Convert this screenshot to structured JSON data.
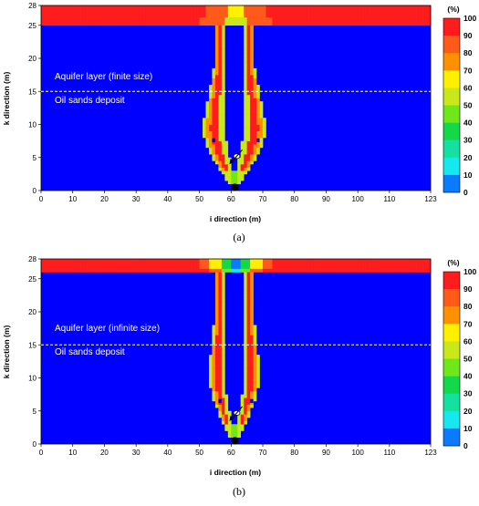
{
  "colors": {
    "background_field": "#0000ff",
    "colorbar": [
      "#0000ff",
      "#0a7aff",
      "#16e8f0",
      "#14e0a0",
      "#13d84a",
      "#6ee81a",
      "#c8e81a",
      "#fff000",
      "#ff9000",
      "#ff5a1a",
      "#ff1c1c"
    ]
  },
  "colorbar": {
    "unit": "(%)",
    "ticks": [
      "100",
      "90",
      "80",
      "70",
      "60",
      "50",
      "40",
      "30",
      "20",
      "10",
      "0"
    ]
  },
  "chart_data": [
    {
      "type": "heatmap",
      "caption": "(a)",
      "xlabel": "i direction (m)",
      "ylabel": "k direction (m)",
      "xlim": [
        0,
        123
      ],
      "ylim": [
        0,
        28
      ],
      "xticks": [
        "0",
        "10",
        "20",
        "30",
        "40",
        "50",
        "60",
        "70",
        "80",
        "90",
        "100",
        "110",
        "123"
      ],
      "yticks": [
        "0",
        "5",
        "10",
        "15",
        "20",
        "25",
        "28"
      ],
      "annotations": {
        "upper": "Aquifer layer (finite size)",
        "lower": "Oil sands deposit"
      },
      "interface_k": 15,
      "well_i": 61,
      "plume_max_halfwidth_m": 10,
      "plume_max_halfwidth_k": 9.5
    },
    {
      "type": "heatmap",
      "caption": "(b)",
      "xlabel": "i direction (m)",
      "ylabel": "k direction (m)",
      "xlim": [
        0,
        123
      ],
      "ylim": [
        0,
        28
      ],
      "xticks": [
        "0",
        "10",
        "20",
        "30",
        "40",
        "50",
        "60",
        "70",
        "80",
        "90",
        "100",
        "110",
        "123"
      ],
      "yticks": [
        "0",
        "5",
        "10",
        "15",
        "20",
        "25",
        "28"
      ],
      "annotations": {
        "upper": "Aquifer layer (infinite size)",
        "lower": "Oil sands deposit"
      },
      "interface_k": 15,
      "well_i": 61,
      "plume_max_halfwidth_m": 8,
      "plume_max_halfwidth_k": 11
    }
  ]
}
